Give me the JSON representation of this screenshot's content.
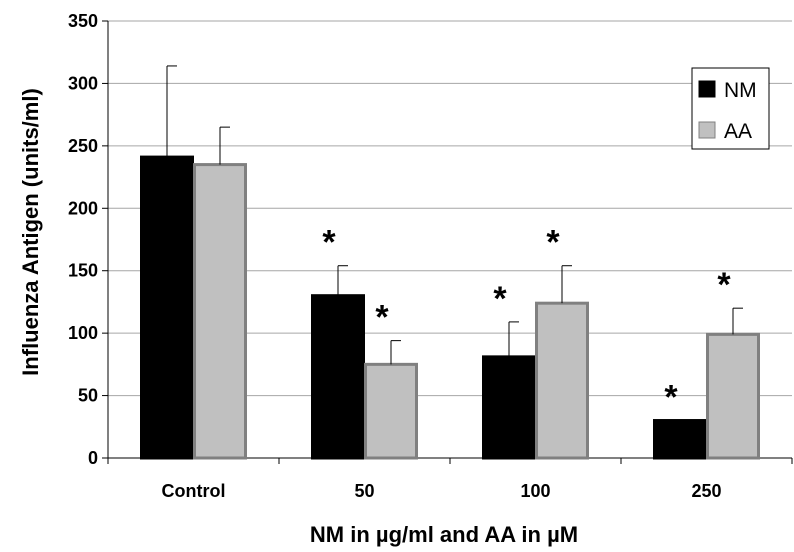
{
  "chart_data": {
    "type": "bar",
    "title": "",
    "xlabel": "NM in µg/ml and AA in µM",
    "ylabel": "Influenza Antigen (units/ml)",
    "categories": [
      "Control",
      "50",
      "100",
      "250"
    ],
    "ylim": [
      0,
      350
    ],
    "yticks": [
      0,
      50,
      100,
      150,
      200,
      250,
      300,
      350
    ],
    "grid": true,
    "legend_position": "top-right",
    "series": [
      {
        "name": "NM",
        "color": "#000000",
        "values": [
          241,
          130,
          81,
          30
        ],
        "error": [
          73,
          24,
          28,
          0
        ],
        "significant": [
          false,
          true,
          true,
          true
        ]
      },
      {
        "name": "AA",
        "color": "#c0c0c0",
        "values": [
          235,
          75,
          124,
          99
        ],
        "error": [
          30,
          19,
          30,
          21
        ],
        "significant": [
          false,
          true,
          true,
          true
        ]
      }
    ],
    "annotation_marker": "*"
  }
}
